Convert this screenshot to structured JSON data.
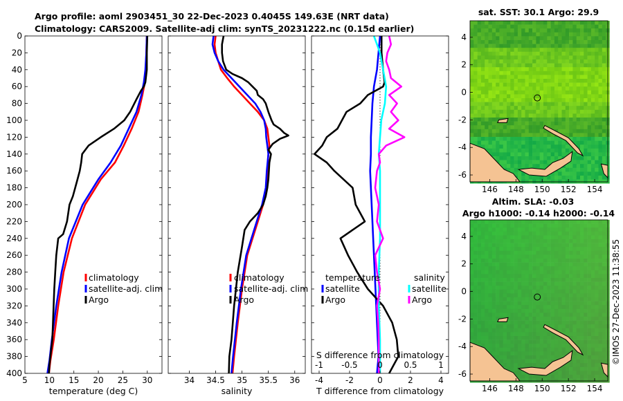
{
  "header": {
    "line1": "Argo profile: aoml 2903451_30 22-Dec-2023 0.4045S 149.63E (NRT data)",
    "line2": "Climatology: CARS2009. Satellite-adj clim: synTS_20231222.nc (0.15d earlier)"
  },
  "credit": "©IMOS 27-Dec-2023 11:38:55",
  "colors": {
    "climatology": "#ff0000",
    "satellite": "#0000ff",
    "argo": "#000000",
    "sat_diff_s": "#00ffff",
    "argo_diff_s": "#ff00ff"
  },
  "chart_data": [
    {
      "type": "line",
      "id": "temperature",
      "xlabel": "temperature (deg C)",
      "xlim": [
        5,
        33
      ],
      "ylim": [
        400,
        0
      ],
      "xticks": [
        "5",
        "10",
        "15",
        "20",
        "25",
        "30"
      ],
      "yticks": [
        "0",
        "20",
        "40",
        "60",
        "80",
        "100",
        "120",
        "140",
        "160",
        "180",
        "200",
        "220",
        "240",
        "260",
        "280",
        "300",
        "320",
        "340",
        "360",
        "380",
        "400"
      ],
      "legend": [
        "climatology",
        "satellite-adj. clim",
        "Argo"
      ],
      "series": [
        {
          "name": "climatology",
          "depth": [
            0,
            20,
            40,
            55,
            70,
            90,
            110,
            130,
            150,
            170,
            200,
            240,
            280,
            320,
            360,
            385,
            400
          ],
          "values": [
            29.9,
            29.8,
            29.7,
            29.5,
            29.0,
            28.2,
            26.8,
            25.2,
            23.4,
            20.5,
            17.3,
            14.6,
            12.9,
            11.8,
            10.9,
            10.2,
            9.9
          ]
        },
        {
          "name": "satellite-adj. clim",
          "depth": [
            0,
            20,
            40,
            55,
            70,
            90,
            110,
            130,
            150,
            170,
            200,
            240,
            280,
            320,
            360,
            385,
            400
          ],
          "values": [
            29.9,
            29.8,
            29.6,
            29.3,
            28.8,
            27.8,
            26.2,
            24.6,
            22.5,
            20.0,
            16.8,
            14.0,
            12.5,
            11.4,
            10.5,
            10.0,
            9.6
          ]
        },
        {
          "name": "Argo",
          "depth": [
            0,
            20,
            40,
            55,
            60,
            65,
            75,
            90,
            100,
            110,
            120,
            130,
            140,
            150,
            160,
            175,
            190,
            200,
            220,
            235,
            240,
            260,
            280,
            300,
            330,
            360,
            380,
            390,
            400
          ],
          "values": [
            30.0,
            29.9,
            29.9,
            29.6,
            29.3,
            28.7,
            27.8,
            26.5,
            25.3,
            23.2,
            20.5,
            18.0,
            16.7,
            16.5,
            16.2,
            15.5,
            14.8,
            14.1,
            13.6,
            12.8,
            11.8,
            11.4,
            11.2,
            11.0,
            10.8,
            10.6,
            10.2,
            10.0,
            9.9
          ]
        }
      ]
    },
    {
      "type": "line",
      "id": "salinity",
      "xlabel": "salinity",
      "xlim": [
        33.6,
        36.2
      ],
      "ylim": [
        400,
        0
      ],
      "xticks": [
        "34",
        "34.5",
        "35",
        "35.5",
        "36"
      ],
      "legend": [
        "climatology",
        "satellite-adj. clim",
        "Argo"
      ],
      "series": [
        {
          "name": "climatology",
          "depth": [
            0,
            10,
            20,
            30,
            40,
            50,
            60,
            70,
            80,
            90,
            100,
            110,
            120,
            130,
            140,
            160,
            180,
            200,
            220,
            240,
            260,
            300,
            340,
            380,
            400
          ],
          "values": [
            34.5,
            34.48,
            34.5,
            34.55,
            34.6,
            34.72,
            34.85,
            35.0,
            35.15,
            35.3,
            35.42,
            35.48,
            35.5,
            35.52,
            35.5,
            35.48,
            35.47,
            35.4,
            35.3,
            35.2,
            35.1,
            35.0,
            34.92,
            34.85,
            34.82
          ]
        },
        {
          "name": "satellite-adj. clim",
          "depth": [
            0,
            10,
            20,
            30,
            40,
            50,
            60,
            70,
            80,
            90,
            100,
            110,
            120,
            130,
            140,
            160,
            180,
            200,
            220,
            240,
            260,
            300,
            340,
            380,
            400
          ],
          "values": [
            34.46,
            34.44,
            34.48,
            34.55,
            34.65,
            34.8,
            34.95,
            35.1,
            35.25,
            35.35,
            35.42,
            35.45,
            35.46,
            35.48,
            35.5,
            35.47,
            35.45,
            35.38,
            35.28,
            35.18,
            35.08,
            34.98,
            34.9,
            34.83,
            34.8
          ]
        },
        {
          "name": "Argo",
          "depth": [
            0,
            10,
            20,
            30,
            40,
            45,
            50,
            55,
            60,
            65,
            70,
            75,
            80,
            90,
            100,
            105,
            110,
            115,
            118,
            122,
            128,
            135,
            140,
            150,
            170,
            180,
            190,
            200,
            210,
            220,
            230,
            250,
            280,
            320,
            360,
            380,
            400
          ],
          "values": [
            34.65,
            34.62,
            34.62,
            34.64,
            34.7,
            34.82,
            35.0,
            35.12,
            35.2,
            35.28,
            35.3,
            35.4,
            35.45,
            35.5,
            35.56,
            35.6,
            35.72,
            35.8,
            35.88,
            35.72,
            35.58,
            35.5,
            35.55,
            35.52,
            35.5,
            35.48,
            35.45,
            35.4,
            35.3,
            35.15,
            35.05,
            35.0,
            34.92,
            34.85,
            34.8,
            34.76,
            34.75
          ]
        }
      ]
    },
    {
      "type": "line",
      "id": "difference",
      "xlabel": "T difference from climatology",
      "top_xlabel": "S difference from climatology",
      "xlim": [
        -4.5,
        4.5
      ],
      "ylim": [
        400,
        0
      ],
      "xticks": [
        "-4",
        "-2",
        "0",
        "2",
        "4"
      ],
      "top_xticks": [
        "-1",
        "-0.5",
        "0",
        "0.5",
        "1"
      ],
      "legend_titles": [
        "temperature",
        "salinity"
      ],
      "legend_left": [
        "satellite",
        "Argo"
      ],
      "legend_right": [
        "satellite",
        "Argo"
      ],
      "series": [
        {
          "name": "temperature satellite",
          "depth": [
            0,
            20,
            40,
            60,
            80,
            100,
            120,
            140,
            160,
            200,
            240,
            280,
            320,
            360,
            380,
            400
          ],
          "values": [
            0.0,
            -0.1,
            -0.2,
            -0.4,
            -0.5,
            -0.55,
            -0.6,
            -0.6,
            -0.65,
            -0.55,
            -0.45,
            -0.35,
            -0.25,
            -0.15,
            -0.1,
            -0.2
          ]
        },
        {
          "name": "temperature Argo",
          "depth": [
            0,
            20,
            40,
            55,
            60,
            70,
            80,
            90,
            100,
            110,
            120,
            130,
            140,
            150,
            160,
            180,
            200,
            220,
            240,
            260,
            280,
            300,
            320,
            340,
            360,
            380,
            390,
            400
          ],
          "values": [
            0.1,
            0.1,
            0.2,
            0.3,
            0.2,
            -0.8,
            -1.3,
            -2.2,
            -2.5,
            -2.8,
            -3.5,
            -3.8,
            -4.3,
            -3.5,
            -3.0,
            -1.8,
            -1.6,
            -1.0,
            -2.6,
            -2.1,
            -1.5,
            -0.8,
            0.2,
            0.8,
            1.1,
            1.2,
            0.9,
            0.6
          ]
        },
        {
          "name": "salinity satellite",
          "depth": [
            0,
            10,
            20,
            40,
            60,
            80,
            100,
            120,
            140,
            160,
            200,
            240,
            280,
            320,
            360,
            400
          ],
          "values": [
            -0.1,
            -0.05,
            0.0,
            0.05,
            0.1,
            0.08,
            0.02,
            0.0,
            -0.02,
            0.0,
            0.0,
            0.0,
            -0.02,
            -0.02,
            0.0,
            0.0
          ]
        },
        {
          "name": "salinity Argo",
          "depth": [
            0,
            10,
            20,
            30,
            40,
            50,
            60,
            70,
            80,
            90,
            100,
            110,
            120,
            130,
            140,
            150,
            160,
            180,
            200,
            220,
            240,
            260,
            280,
            300,
            320,
            340,
            360,
            380,
            400
          ],
          "values": [
            0.15,
            0.18,
            0.12,
            0.1,
            0.15,
            0.18,
            0.35,
            0.15,
            0.28,
            0.18,
            0.3,
            0.15,
            0.4,
            0.1,
            -0.02,
            0.0,
            -0.05,
            -0.08,
            -0.02,
            -0.05,
            0.05,
            -0.08,
            -0.05,
            0.0,
            -0.05,
            -0.03,
            -0.02,
            -0.02,
            -0.02
          ]
        }
      ]
    },
    {
      "type": "heatmap",
      "id": "sst_map",
      "title": "sat. SST: 30.1 Argo: 29.9",
      "xlim": [
        144.5,
        155
      ],
      "ylim": [
        -6.5,
        5.2
      ],
      "xticks": [
        "146",
        "148",
        "150",
        "152",
        "154"
      ],
      "yticks": [
        "-6",
        "-4",
        "-2",
        "0",
        "2",
        "4"
      ],
      "argo_position": [
        149.63,
        -0.4045
      ]
    },
    {
      "type": "heatmap",
      "id": "sla_map",
      "title": "Altim. SLA: -0.03",
      "subtitle": "Argo h1000: -0.14 h2000: -0.14",
      "xlim": [
        144.5,
        155
      ],
      "ylim": [
        -6.5,
        5.2
      ],
      "xticks": [
        "146",
        "148",
        "150",
        "152",
        "154"
      ],
      "yticks": [
        "-6",
        "-4",
        "-2",
        "0",
        "2",
        "4"
      ],
      "argo_position": [
        149.63,
        -0.4045
      ]
    }
  ]
}
